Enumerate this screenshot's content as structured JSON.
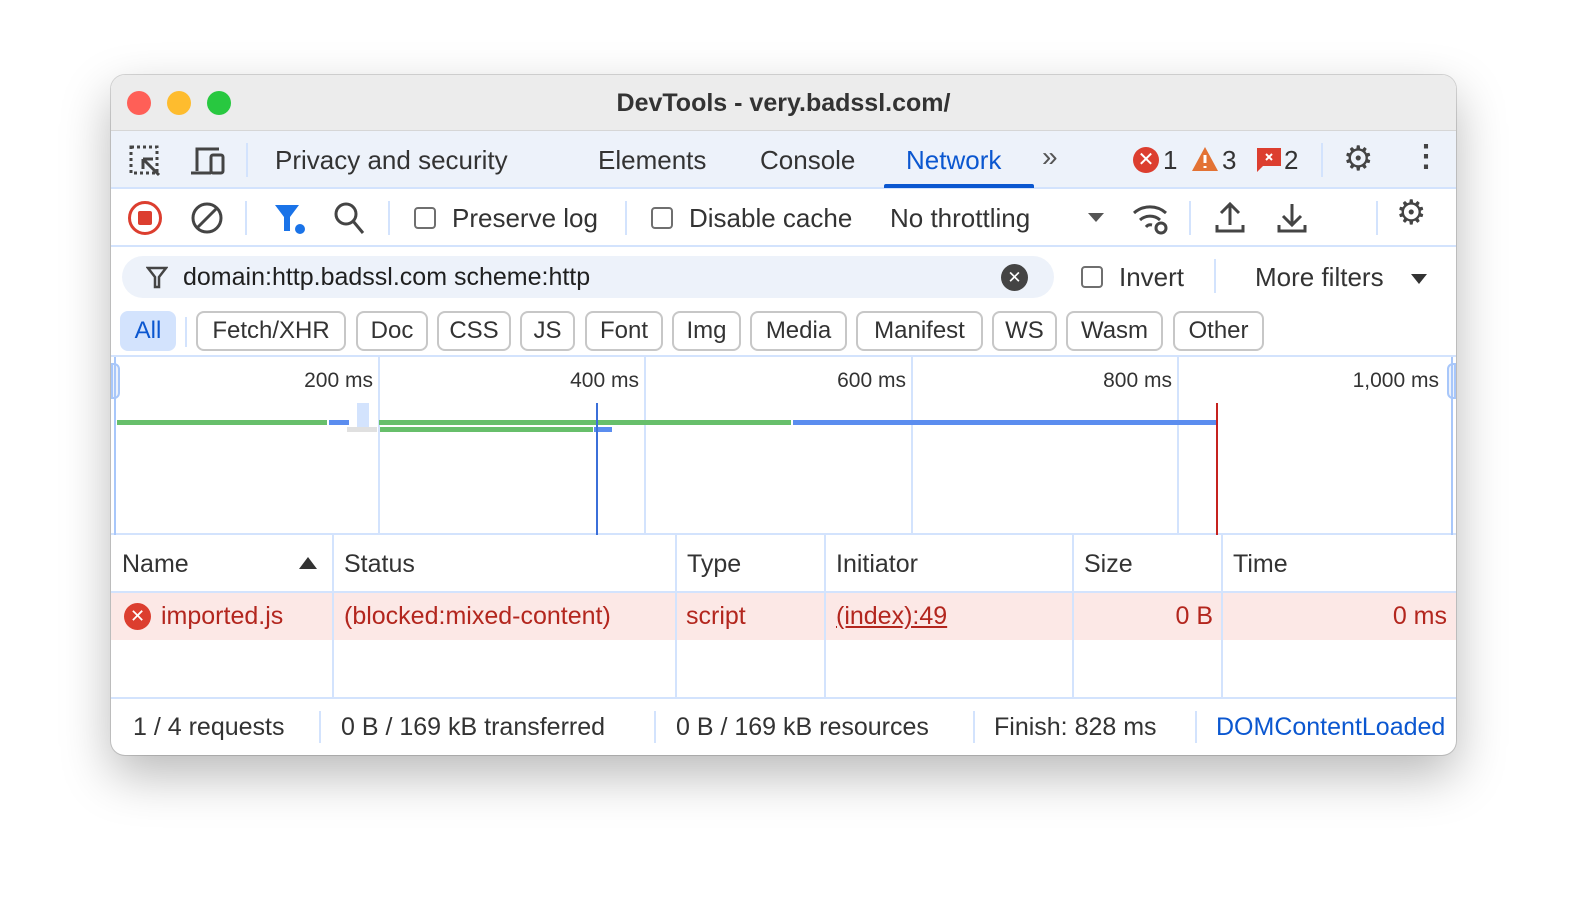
{
  "window": {
    "title": "DevTools - very.badssl.com/"
  },
  "tabs": {
    "items": [
      "Privacy and security",
      "Elements",
      "Console",
      "Network"
    ],
    "active": "Network"
  },
  "counters": {
    "errors": "1",
    "warnings": "3",
    "issues": "2"
  },
  "toolbar": {
    "preserve_log": "Preserve log",
    "disable_cache": "Disable cache",
    "throttling": "No throttling"
  },
  "filter": {
    "value": "domain:http.badssl.com scheme:http",
    "invert": "Invert",
    "more_filters": "More filters"
  },
  "type_filters": [
    "All",
    "Fetch/XHR",
    "Doc",
    "CSS",
    "JS",
    "Font",
    "Img",
    "Media",
    "Manifest",
    "WS",
    "Wasm",
    "Other"
  ],
  "overview": {
    "ticks": [
      "200 ms",
      "400 ms",
      "600 ms",
      "800 ms",
      "1,000 ms"
    ]
  },
  "table": {
    "columns": [
      "Name",
      "Status",
      "Type",
      "Initiator",
      "Size",
      "Time"
    ],
    "rows": [
      {
        "name": "imported.js",
        "status": "(blocked:mixed-content)",
        "type": "script",
        "initiator": "(index):49",
        "size": "0 B",
        "time": "0 ms"
      }
    ]
  },
  "status": {
    "requests": "1 / 4 requests",
    "transferred": "0 B / 169 kB transferred",
    "resources": "0 B / 169 kB resources",
    "finish": "Finish: 828 ms",
    "dcl": "DOMContentLoaded"
  },
  "colors": {
    "accent": "#0b57d0",
    "error": "#b3261e",
    "row_error_bg": "#fce8e6"
  }
}
